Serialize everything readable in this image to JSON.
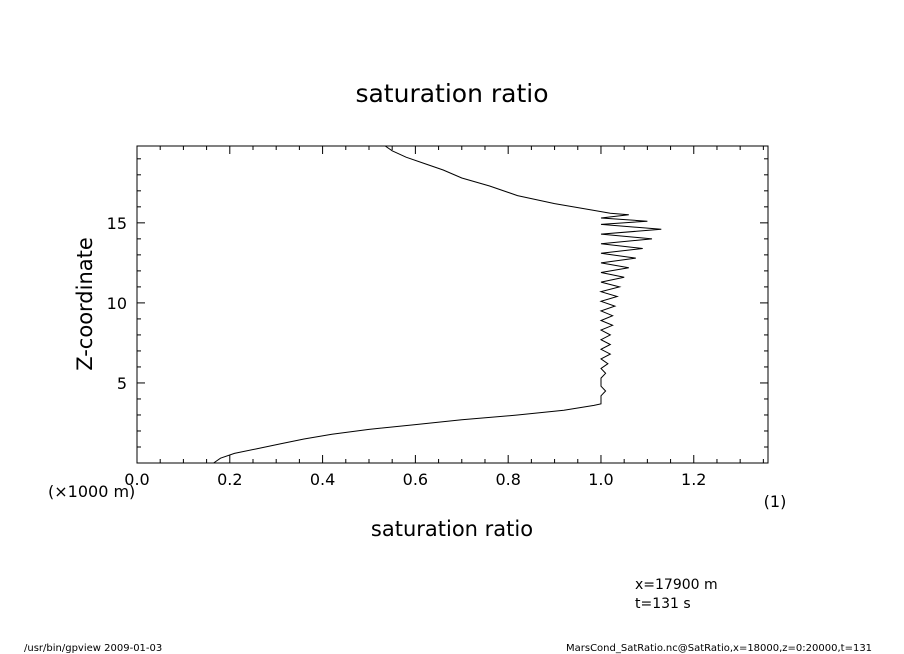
{
  "footer": {
    "left": "/usr/bin/gpview   2009-01-03",
    "right": "MarsCond_SatRatio.nc@SatRatio,x=18000,z=0:20000,t=131"
  },
  "info": {
    "line1": "x=17900  m",
    "line2": "t=131  s"
  },
  "chart_data": {
    "type": "line",
    "title": "saturation ratio",
    "xlabel": "saturation ratio",
    "xunit": "(1)",
    "ylabel": "Z-coordinate",
    "yunit": "(×1000 m)",
    "xlim": [
      0.0,
      1.36
    ],
    "ylim": [
      0,
      19.8
    ],
    "xticks": [
      "0.0",
      "0.2",
      "0.4",
      "0.6",
      "0.8",
      "1.0",
      "1.2"
    ],
    "yticks": [
      "5",
      "10",
      "15"
    ],
    "grid": false,
    "series": [
      {
        "points": [
          [
            0.165,
            0.0
          ],
          [
            0.18,
            0.3
          ],
          [
            0.21,
            0.6
          ],
          [
            0.26,
            0.9
          ],
          [
            0.31,
            1.2
          ],
          [
            0.36,
            1.5
          ],
          [
            0.42,
            1.8
          ],
          [
            0.5,
            2.1
          ],
          [
            0.6,
            2.4
          ],
          [
            0.7,
            2.7
          ],
          [
            0.82,
            3.0
          ],
          [
            0.92,
            3.3
          ],
          [
            0.985,
            3.6
          ],
          [
            1.0,
            3.7
          ],
          [
            1.0,
            3.9
          ],
          [
            1.0,
            4.2
          ],
          [
            1.01,
            4.5
          ],
          [
            1.0,
            4.8
          ],
          [
            1.0,
            5.1
          ],
          [
            1.0,
            5.3
          ],
          [
            1.01,
            5.6
          ],
          [
            1.0,
            5.9
          ],
          [
            1.015,
            6.2
          ],
          [
            1.0,
            6.5
          ],
          [
            1.02,
            6.8
          ],
          [
            1.0,
            7.1
          ],
          [
            1.02,
            7.4
          ],
          [
            1.0,
            7.7
          ],
          [
            1.02,
            8.0
          ],
          [
            1.0,
            8.3
          ],
          [
            1.025,
            8.6
          ],
          [
            1.0,
            8.9
          ],
          [
            1.025,
            9.2
          ],
          [
            1.0,
            9.5
          ],
          [
            1.03,
            9.8
          ],
          [
            1.0,
            10.1
          ],
          [
            1.035,
            10.4
          ],
          [
            1.0,
            10.7
          ],
          [
            1.04,
            11.0
          ],
          [
            1.0,
            11.3
          ],
          [
            1.05,
            11.6
          ],
          [
            1.0,
            11.9
          ],
          [
            1.06,
            12.2
          ],
          [
            1.0,
            12.5
          ],
          [
            1.075,
            12.8
          ],
          [
            1.0,
            13.1
          ],
          [
            1.09,
            13.4
          ],
          [
            1.0,
            13.7
          ],
          [
            1.11,
            14.0
          ],
          [
            1.0,
            14.3
          ],
          [
            1.13,
            14.6
          ],
          [
            1.0,
            14.9
          ],
          [
            1.1,
            15.1
          ],
          [
            1.0,
            15.3
          ],
          [
            1.06,
            15.5
          ],
          [
            1.02,
            15.6
          ],
          [
            0.98,
            15.8
          ],
          [
            0.9,
            16.2
          ],
          [
            0.82,
            16.7
          ],
          [
            0.76,
            17.3
          ],
          [
            0.7,
            17.8
          ],
          [
            0.66,
            18.3
          ],
          [
            0.62,
            18.7
          ],
          [
            0.58,
            19.1
          ],
          [
            0.55,
            19.5
          ],
          [
            0.535,
            19.8
          ]
        ]
      }
    ]
  }
}
